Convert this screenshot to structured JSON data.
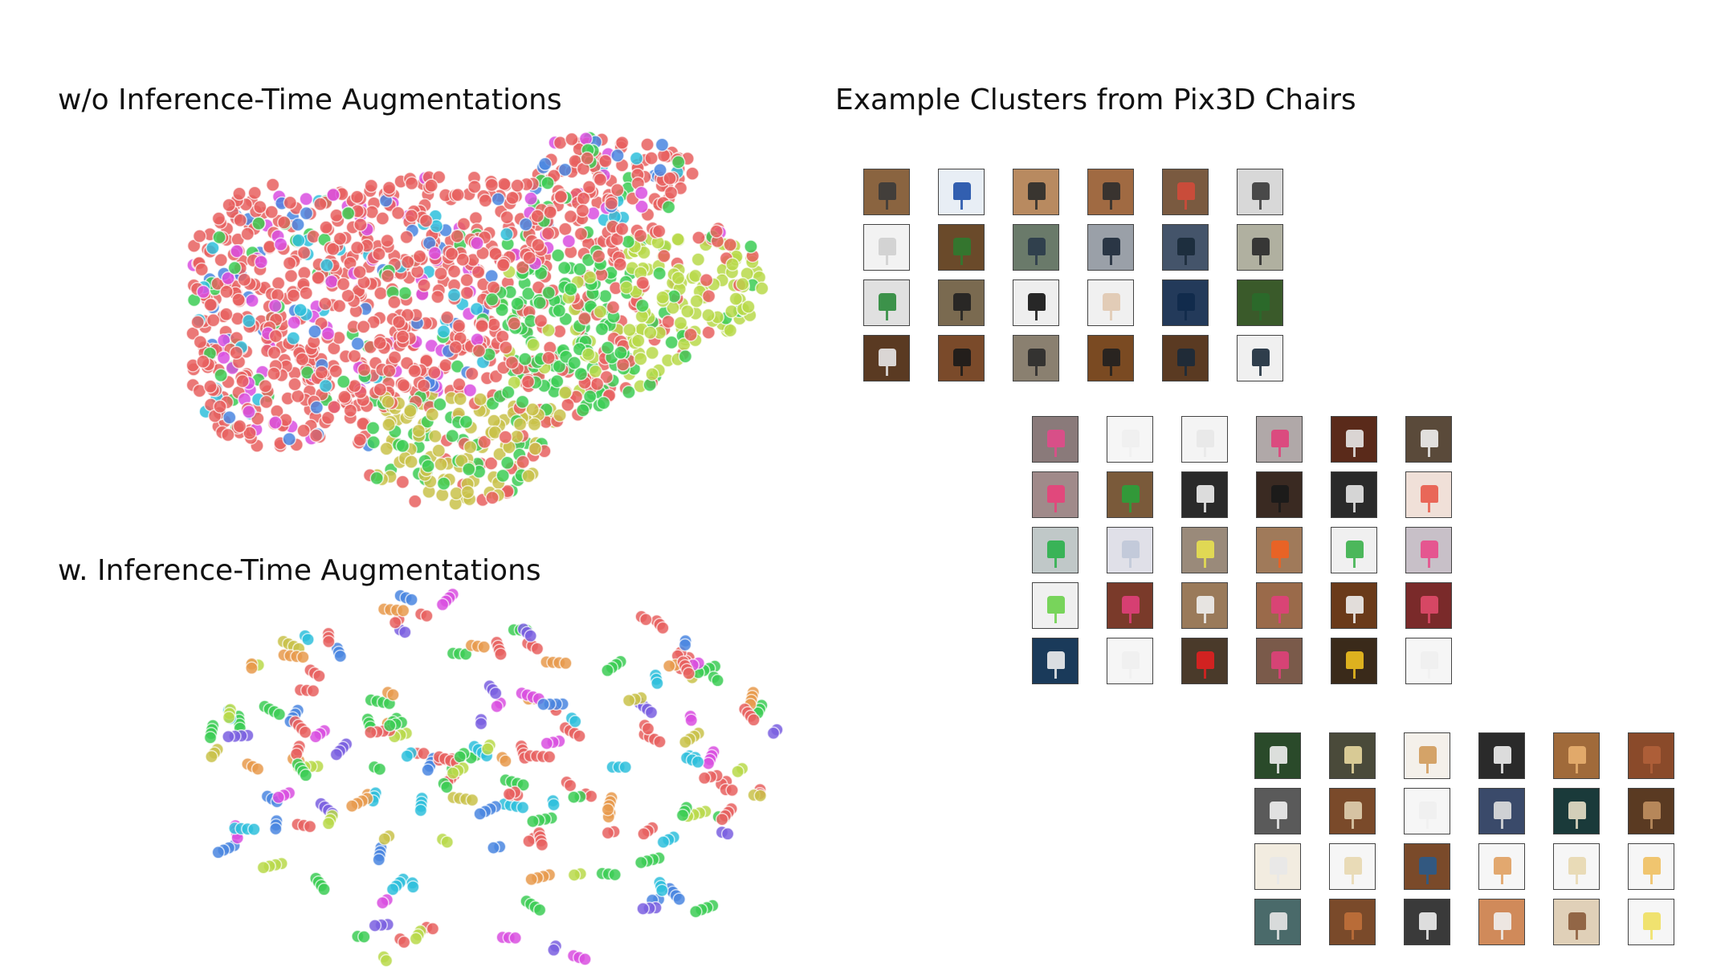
{
  "headings": {
    "top_left": "w/o Inference-Time Augmentations",
    "bottom_left": "w. Inference-Time Augmentations",
    "right": "Example Clusters from Pix3D Chairs"
  },
  "palette": {
    "red": "#e8605f",
    "green": "#3ccc55",
    "lime": "#b8d94a",
    "olive": "#c9c24a",
    "magenta": "#d94fe0",
    "blue": "#4a86e0",
    "cyan": "#2fbfdc",
    "orange": "#e89a4c",
    "purple": "#7a5fe0"
  },
  "clusters": [
    {
      "rows": 4,
      "cols": 6,
      "thumbs": [
        [
          "#3a3a3a",
          "#8a6440"
        ],
        [
          "#1e4fa8",
          "#e8eef5"
        ],
        [
          "#2b2b2b",
          "#b88a60"
        ],
        [
          "#2d2d2d",
          "#a06a42"
        ],
        [
          "#d24a3a",
          "#7a5a40"
        ],
        [
          "#3a3a3a",
          "#d8d8d8"
        ],
        [
          "#cfcfcf",
          "#f2f2f2"
        ],
        [
          "#2f7a2f",
          "#6a4a2a"
        ],
        [
          "#2a3a4a",
          "#6a7a6a"
        ],
        [
          "#1e2a3a",
          "#9aa0a8"
        ],
        [
          "#1a2a3a",
          "#44546a"
        ],
        [
          "#2a2a2a",
          "#b0b0a0"
        ],
        [
          "#2a8a3a",
          "#e0e0e0"
        ],
        [
          "#202020",
          "#7a6a50"
        ],
        [
          "#111111",
          "#eeeeee"
        ],
        [
          "#e0c8b0",
          "#f0f0f0"
        ],
        [
          "#102a4a",
          "#233a5a"
        ],
        [
          "#2a6a2a",
          "#3a5a2a"
        ],
        [
          "#e8e8e8",
          "#5a3a22"
        ],
        [
          "#1a1a1a",
          "#7a4a2a"
        ],
        [
          "#2a2a2a",
          "#8a8070"
        ],
        [
          "#202020",
          "#7a4a22"
        ],
        [
          "#1a2a3a",
          "#5a3a22"
        ],
        [
          "#1a2a3a",
          "#f0f0f0"
        ]
      ]
    },
    {
      "rows": 5,
      "cols": 6,
      "thumbs": [
        [
          "#e04a8a",
          "#8a7a7a"
        ],
        [
          "#f0f0f0",
          "#f6f6f6"
        ],
        [
          "#e8e8e8",
          "#f4f4f4"
        ],
        [
          "#e0407a",
          "#b0a8a8"
        ],
        [
          "#e8e8e8",
          "#5a2a1a"
        ],
        [
          "#f0f0f0",
          "#5a4a3a"
        ],
        [
          "#e8407a",
          "#a08a8a"
        ],
        [
          "#2aa03a",
          "#7a5a3a"
        ],
        [
          "#f0f0f0",
          "#2a2a2a"
        ],
        [
          "#1a1a1a",
          "#3a2a22"
        ],
        [
          "#e8e8e8",
          "#2a2a2a"
        ],
        [
          "#e85a4a",
          "#f0e0d8"
        ],
        [
          "#2ab04a",
          "#c0c8c8"
        ],
        [
          "#c0c8d8",
          "#e0e0e8"
        ],
        [
          "#e8e050",
          "#9a8a7a"
        ],
        [
          "#f06020",
          "#a07a5a"
        ],
        [
          "#3ab04a",
          "#f0f0f0"
        ],
        [
          "#e84a8a",
          "#c8c0c8"
        ],
        [
          "#6ad04a",
          "#f0f0f0"
        ],
        [
          "#e0407a",
          "#7a3a2a"
        ],
        [
          "#f0f0f0",
          "#9a7a5a"
        ],
        [
          "#e0407a",
          "#9a6a4a"
        ],
        [
          "#f0f0f0",
          "#6a3a1a"
        ],
        [
          "#e04a6a",
          "#7a2a2a"
        ],
        [
          "#f0f0f0",
          "#1a3a5a"
        ],
        [
          "#f0f0f0",
          "#f6f6f6"
        ],
        [
          "#e02020",
          "#4a3a2a"
        ],
        [
          "#e0407a",
          "#7a5a4a"
        ],
        [
          "#f0c020",
          "#3a2a1a"
        ],
        [
          "#f0f0f0",
          "#f6f6f6"
        ]
      ]
    },
    {
      "rows": 4,
      "cols": 6,
      "thumbs": [
        [
          "#f0f0f0",
          "#2a4a2a"
        ],
        [
          "#e8d8a0",
          "#4a4a3a"
        ],
        [
          "#d09a5a",
          "#f4f0ea"
        ],
        [
          "#f0f0f0",
          "#2a2a2a"
        ],
        [
          "#e8b070",
          "#a06a3a"
        ],
        [
          "#b0603a",
          "#8a4a2a"
        ],
        [
          "#f0f0f0",
          "#5a5a5a"
        ],
        [
          "#e0d0b0",
          "#7a4a2a"
        ],
        [
          "#f0f0f0",
          "#f6f6f6"
        ],
        [
          "#e0e0e0",
          "#3a4a6a"
        ],
        [
          "#e8e0c8",
          "#1a3a3a"
        ],
        [
          "#c09060",
          "#5a3a22"
        ],
        [
          "#e8e8e8",
          "#f2ece0"
        ],
        [
          "#e8d8b0",
          "#f6f6f6"
        ],
        [
          "#2a5a8a",
          "#7a4a2a"
        ],
        [
          "#e0a060",
          "#f6f6f6"
        ],
        [
          "#e8d8b0",
          "#f6f6f6"
        ],
        [
          "#f0c060",
          "#f6f6f6"
        ],
        [
          "#e8e8e8",
          "#4a6a6a"
        ],
        [
          "#c0703a",
          "#7a4a2a"
        ],
        [
          "#f0f0f0",
          "#3a3a3a"
        ],
        [
          "#f0f0f0",
          "#d08a5a"
        ],
        [
          "#8a5a3a",
          "#e0d0b8"
        ],
        [
          "#f0e060",
          "#f6f6f6"
        ]
      ]
    }
  ]
}
